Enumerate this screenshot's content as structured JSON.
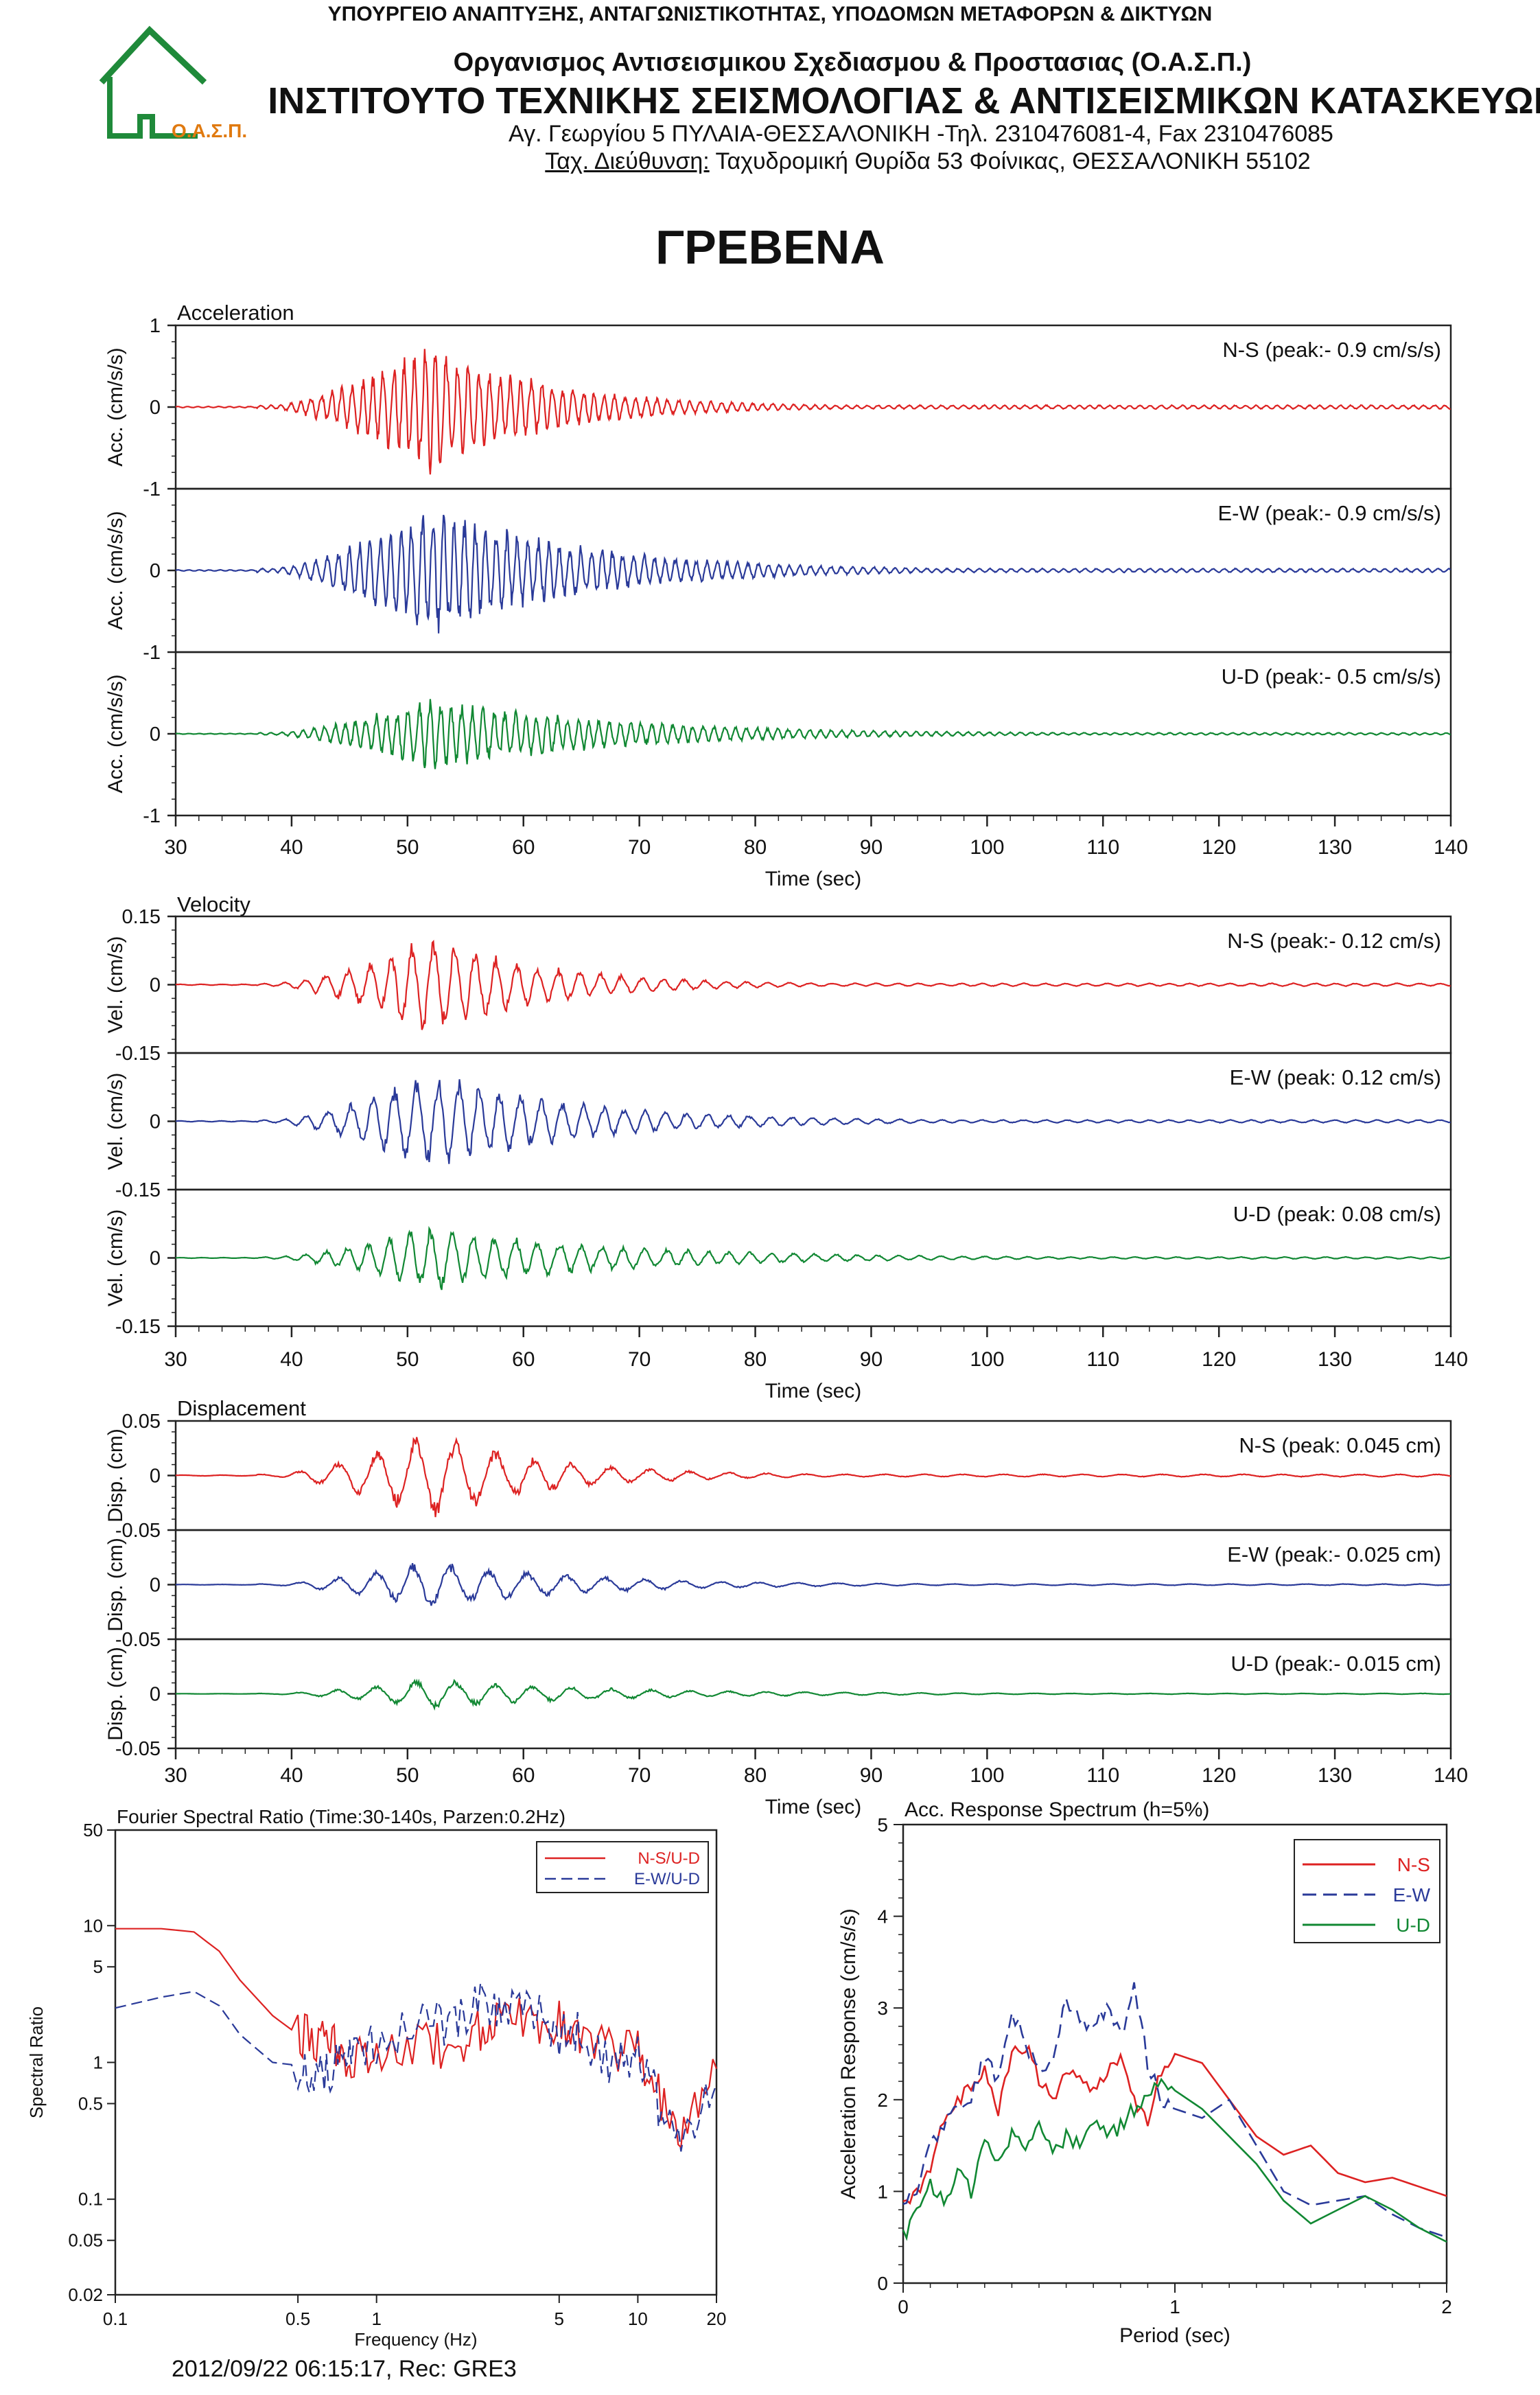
{
  "header": {
    "ministry": "ΥΠΟΥΡΓΕΙΟ ΑΝΑΠΤΥΞΗΣ, ΑΝΤΑΓΩΝΙΣΤΙΚΟΤΗΤΑΣ, ΥΠΟΔΟΜΩΝ ΜΕΤΑΦΟΡΩΝ & ΔΙΚΤΥΩΝ",
    "organization": "Οργανισμος Αντισεισμικου Σχεδιασμου & Προστασιας (Ο.Α.Σ.Π.)",
    "institute": "ΙΝΣΤΙΤΟΥΤΟ ΤΕΧΝΙΚΗΣ ΣΕΙΣΜΟΛΟΓΙΑΣ & ΑΝΤΙΣΕΙΣΜΙΚΩΝ ΚΑΤΑΣΚΕΥΩΝ",
    "address_line": "Αγ. Γεωργίου 5 ΠΥΛΑΙΑ-ΘΕΣΣΑΛΟΝΙΚΗ -Τηλ. 2310476081-4,  Fax 2310476085",
    "postal_label": "Ταχ. Διεύθυνση:",
    "postal_address": " Ταχυδρομική Θυρίδα 53 Φοίνικας, ΘΕΣΣΑΛΟΝΙΚΗ 55102",
    "logo_text": "Ο.Α.Σ.Π."
  },
  "page_title": "ΓΡΕΒΕΝΑ",
  "footer": "2012/09/22 06:15:17, Rec: GRE3",
  "colors": {
    "ns": "#dd2222",
    "ew": "#2a3a99",
    "ud": "#118833",
    "logo": "#1f8a3a",
    "logo_text": "#e07a10"
  },
  "chart_data": [
    {
      "type": "line",
      "title": "Acceleration",
      "xlabel": "Time (sec)",
      "xlim": [
        30,
        140
      ],
      "xticks": [
        "30",
        "40",
        "50",
        "60",
        "70",
        "80",
        "90",
        "100",
        "110",
        "120",
        "130",
        "140"
      ],
      "yticks": [
        "1",
        "0",
        "-1"
      ],
      "ylim": [
        -1,
        1
      ],
      "panels": [
        {
          "series": "N-S",
          "ylabel": "Acc. (cm/s/s)",
          "label": "N-S (peak:- 0.9 cm/s/s)",
          "peak": 0.9,
          "color_key": "ns"
        },
        {
          "series": "E-W",
          "ylabel": "Acc. (cm/s/s)",
          "label": "E-W (peak:- 0.9 cm/s/s)",
          "peak": 0.9,
          "color_key": "ew"
        },
        {
          "series": "U-D",
          "ylabel": "Acc. (cm/s/s)",
          "label": "U-D (peak:- 0.5 cm/s/s)",
          "peak": 0.5,
          "color_key": "ud"
        }
      ]
    },
    {
      "type": "line",
      "title": "Velocity",
      "xlabel": "Time (sec)",
      "xlim": [
        30,
        140
      ],
      "xticks": [
        "30",
        "40",
        "50",
        "60",
        "70",
        "80",
        "90",
        "100",
        "110",
        "120",
        "130",
        "140"
      ],
      "yticks": [
        "0.15",
        "0",
        "-0.15"
      ],
      "ylim": [
        -0.15,
        0.15
      ],
      "panels": [
        {
          "series": "N-S",
          "ylabel": "Vel. (cm/s)",
          "label": "N-S (peak:- 0.12 cm/s)",
          "peak": 0.12,
          "color_key": "ns"
        },
        {
          "series": "E-W",
          "ylabel": "Vel. (cm/s)",
          "label": "E-W (peak: 0.12 cm/s)",
          "peak": 0.12,
          "color_key": "ew"
        },
        {
          "series": "U-D",
          "ylabel": "Vel. (cm/s)",
          "label": "U-D (peak: 0.08 cm/s)",
          "peak": 0.08,
          "color_key": "ud"
        }
      ]
    },
    {
      "type": "line",
      "title": "Displacement",
      "xlabel": "Time (sec)",
      "xlim": [
        30,
        140
      ],
      "xticks": [
        "30",
        "40",
        "50",
        "60",
        "70",
        "80",
        "90",
        "100",
        "110",
        "120",
        "130",
        "140"
      ],
      "yticks": [
        "0.05",
        "0",
        "-0.05"
      ],
      "ylim": [
        -0.05,
        0.05
      ],
      "panels": [
        {
          "series": "N-S",
          "ylabel": "Disp. (cm)",
          "label": "N-S (peak: 0.045 cm)",
          "peak": 0.045,
          "color_key": "ns"
        },
        {
          "series": "E-W",
          "ylabel": "Disp. (cm)",
          "label": "E-W (peak:- 0.025 cm)",
          "peak": 0.025,
          "color_key": "ew"
        },
        {
          "series": "U-D",
          "ylabel": "Disp. (cm)",
          "label": "U-D (peak:- 0.015 cm)",
          "peak": 0.015,
          "color_key": "ud"
        }
      ]
    },
    {
      "type": "line",
      "title": "Fourier Spectral Ratio (Time:30-140s, Parzen:0.2Hz)",
      "xlabel": "Frequency (Hz)",
      "ylabel": "Spectral Ratio",
      "xscale": "log",
      "yscale": "log",
      "xlim": [
        0.1,
        20
      ],
      "ylim": [
        0.02,
        50
      ],
      "xticks": [
        "0.1",
        "0.5",
        "1",
        "5",
        "10",
        "20"
      ],
      "yticks": [
        "50",
        "10",
        "5",
        "1",
        "0.5",
        "0.1",
        "0.05",
        "0.02"
      ],
      "legend": "top-right",
      "series": [
        {
          "name": "N-S/U-D",
          "color_key": "ns",
          "dash": false,
          "x": [
            0.1,
            0.15,
            0.2,
            0.25,
            0.3,
            0.4,
            0.5,
            0.6,
            0.7,
            0.8,
            1,
            1.5,
            2,
            2.5,
            3,
            4,
            5,
            6,
            8,
            10,
            12,
            15,
            20
          ],
          "y": [
            9.5,
            9.5,
            9.0,
            6.5,
            4.0,
            2.2,
            1.6,
            1.4,
            1.3,
            1.1,
            1.2,
            1.5,
            1.2,
            1.8,
            2.6,
            1.8,
            1.9,
            1.4,
            1.2,
            1.3,
            0.6,
            0.3,
            0.9
          ]
        },
        {
          "name": "E-W/U-D",
          "color_key": "ew",
          "dash": true,
          "x": [
            0.1,
            0.15,
            0.2,
            0.25,
            0.3,
            0.4,
            0.5,
            0.6,
            0.7,
            0.8,
            1,
            1.5,
            2,
            2.5,
            3,
            4,
            5,
            6,
            8,
            10,
            12,
            15,
            20
          ],
          "y": [
            2.5,
            3.0,
            3.3,
            2.6,
            1.6,
            1.0,
            0.95,
            0.8,
            0.9,
            1.2,
            1.4,
            1.8,
            2.0,
            2.8,
            2.2,
            2.4,
            1.5,
            1.6,
            1.0,
            1.2,
            0.5,
            0.3,
            0.7
          ]
        }
      ]
    },
    {
      "type": "line",
      "title": "Acc. Response Spectrum (h=5%)",
      "xlabel": "Period (sec)",
      "ylabel": "Acceleration Response (cm/s/s)",
      "xlim": [
        0,
        2
      ],
      "ylim": [
        0,
        5
      ],
      "xticks": [
        "0",
        "1",
        "2"
      ],
      "yticks": [
        "0",
        "1",
        "2",
        "3",
        "4",
        "5"
      ],
      "legend": "top-right",
      "series": [
        {
          "name": "N-S",
          "color_key": "ns",
          "dash": false,
          "x": [
            0.0,
            0.05,
            0.1,
            0.15,
            0.2,
            0.25,
            0.3,
            0.35,
            0.4,
            0.45,
            0.5,
            0.55,
            0.6,
            0.65,
            0.7,
            0.75,
            0.8,
            0.85,
            0.9,
            0.95,
            1.0,
            1.1,
            1.2,
            1.3,
            1.4,
            1.5,
            1.6,
            1.7,
            1.8,
            1.9,
            2.0
          ],
          "y": [
            0.9,
            1.0,
            1.3,
            1.8,
            2.0,
            2.1,
            2.3,
            1.9,
            2.5,
            2.6,
            2.2,
            2.0,
            2.3,
            2.2,
            2.1,
            2.3,
            2.5,
            2.0,
            1.8,
            2.3,
            2.5,
            2.4,
            2.0,
            1.6,
            1.4,
            1.5,
            1.2,
            1.1,
            1.15,
            1.05,
            0.95
          ]
        },
        {
          "name": "E-W",
          "color_key": "ew",
          "dash": true,
          "x": [
            0.0,
            0.05,
            0.1,
            0.15,
            0.2,
            0.25,
            0.3,
            0.35,
            0.4,
            0.45,
            0.5,
            0.55,
            0.6,
            0.65,
            0.7,
            0.75,
            0.8,
            0.85,
            0.9,
            0.95,
            1.0,
            1.1,
            1.2,
            1.3,
            1.4,
            1.5,
            1.6,
            1.7,
            1.8,
            1.9,
            2.0
          ],
          "y": [
            0.9,
            1.0,
            1.5,
            1.7,
            1.9,
            2.0,
            2.5,
            2.2,
            3.0,
            2.6,
            2.3,
            2.4,
            3.1,
            2.9,
            2.8,
            3.0,
            2.7,
            3.2,
            2.4,
            2.0,
            1.9,
            1.8,
            2.0,
            1.5,
            1.0,
            0.85,
            0.9,
            0.95,
            0.75,
            0.6,
            0.5
          ]
        },
        {
          "name": "U-D",
          "color_key": "ud",
          "dash": false,
          "x": [
            0.0,
            0.05,
            0.1,
            0.15,
            0.2,
            0.25,
            0.3,
            0.35,
            0.4,
            0.45,
            0.5,
            0.55,
            0.6,
            0.65,
            0.7,
            0.75,
            0.8,
            0.85,
            0.9,
            0.95,
            1.0,
            1.1,
            1.2,
            1.3,
            1.4,
            1.5,
            1.6,
            1.7,
            1.8,
            1.9,
            2.0
          ],
          "y": [
            0.5,
            0.8,
            1.1,
            0.9,
            1.2,
            1.0,
            1.5,
            1.4,
            1.6,
            1.5,
            1.7,
            1.4,
            1.6,
            1.5,
            1.8,
            1.6,
            1.7,
            1.9,
            2.1,
            2.2,
            2.1,
            1.9,
            1.6,
            1.3,
            0.9,
            0.65,
            0.8,
            0.95,
            0.8,
            0.6,
            0.45
          ]
        }
      ]
    }
  ]
}
